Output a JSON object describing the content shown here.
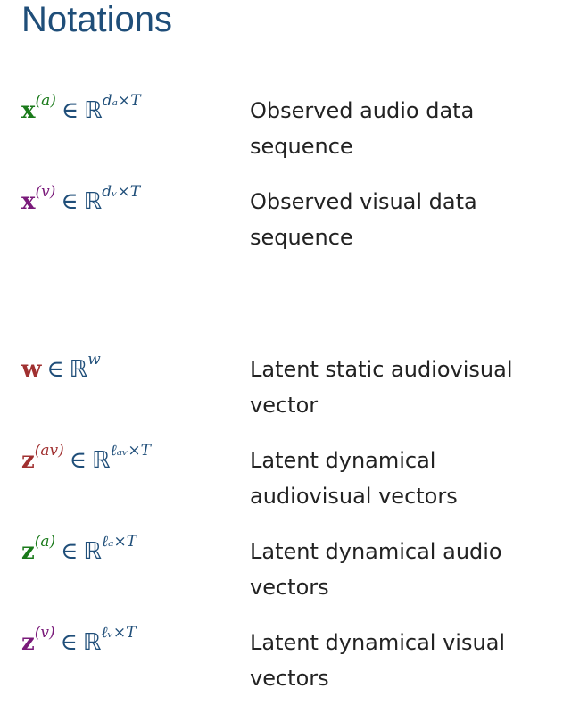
{
  "title": "Notations",
  "colors": {
    "title": "#1f4e79",
    "audio": "#1a7a1a",
    "visual": "#7a1a7a",
    "latent": "#a03030",
    "math": "#1f4e79",
    "text": "#222222"
  },
  "rows": [
    {
      "var": "x",
      "var_sup": "(a)",
      "in": "∈",
      "set": "ℝ",
      "set_sup": "dₐ×T",
      "desc": "Observed audio data sequence"
    },
    {
      "var": "x",
      "var_sup": "(v)",
      "in": "∈",
      "set": "ℝ",
      "set_sup": "dᵥ×T",
      "desc": "Observed visual data sequence"
    },
    {
      "var": "w",
      "var_sup": "",
      "in": "∈",
      "set": "ℝ",
      "set_sup": "w",
      "desc": "Latent static audiovisual vector"
    },
    {
      "var": "z",
      "var_sup": "(av)",
      "in": "∈",
      "set": "ℝ",
      "set_sup": "ℓₐᵥ×T",
      "desc": "Latent dynamical audiovisual vectors"
    },
    {
      "var": "z",
      "var_sup": "(a)",
      "in": "∈",
      "set": "ℝ",
      "set_sup": "ℓₐ×T",
      "desc": "Latent dynamical audio vectors"
    },
    {
      "var": "z",
      "var_sup": "(v)",
      "in": "∈",
      "set": "ℝ",
      "set_sup": "ℓᵥ×T",
      "desc": "Latent dynamical visual vectors"
    }
  ]
}
